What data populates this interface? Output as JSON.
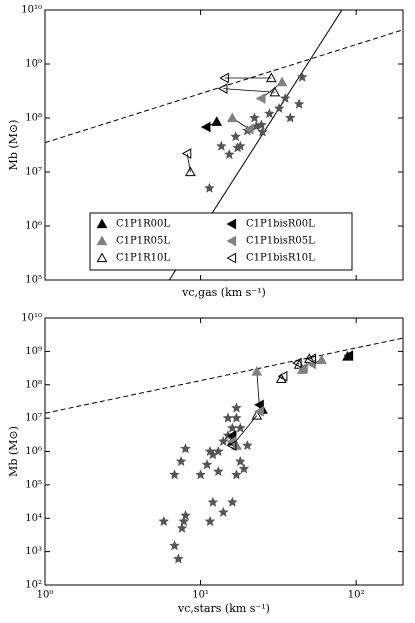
{
  "chart_data": [
    {
      "type": "scatter",
      "x_label": "vc,gas (km s⁻¹)",
      "y_label": "Mb (M⊙)",
      "xscale": "log",
      "yscale": "log",
      "xlim": [
        1,
        200
      ],
      "ylim": [
        100000,
        10000000000
      ],
      "xticks": [
        1,
        10,
        100
      ],
      "show_xtick_labels": false,
      "yticks": [
        {
          "value": 100000,
          "label": "10⁵"
        },
        {
          "value": 1000000,
          "label": "10⁶"
        },
        {
          "value": 10000000,
          "label": "10⁷"
        },
        {
          "value": 100000000,
          "label": "10⁸"
        },
        {
          "value": 1000000000,
          "label": "10⁹"
        },
        {
          "value": 10000000000,
          "label": "10¹⁰"
        }
      ],
      "legend": "lower center",
      "connect_pairs": [
        [
          0,
          3
        ],
        [
          1,
          4
        ],
        [
          2,
          5
        ]
      ],
      "series": [
        {
          "name": "C1P1R00L",
          "marker": "^",
          "color": "#000000",
          "edgecolor": "#000000",
          "x": [
            12.7
          ],
          "values": [
            85000000
          ]
        },
        {
          "name": "C1P1R05L",
          "marker": "^",
          "color": "#808080",
          "edgecolor": "#808080",
          "x": [
            33.4,
            16
          ],
          "values": [
            460000000,
            100000000
          ]
        },
        {
          "name": "C1P1R10L",
          "marker": "^",
          "color": "none",
          "edgecolor": "#000000",
          "x": [
            8.6,
            28.5,
            30
          ],
          "values": [
            10000000,
            550000000,
            300000000
          ]
        },
        {
          "name": "C1P1bisR00L",
          "marker": "<",
          "color": "#000000",
          "edgecolor": "#000000",
          "x": [
            10.9
          ],
          "values": [
            68000000
          ]
        },
        {
          "name": "C1P1bisR05L",
          "marker": "<",
          "color": "#808080",
          "edgecolor": "#808080",
          "x": [
            24.6,
            20.6
          ],
          "values": [
            230000000,
            62000000
          ]
        },
        {
          "name": "C1P1bisR10L",
          "marker": "<",
          "color": "none",
          "edgecolor": "#000000",
          "x": [
            8.2,
            14.3,
            14
          ],
          "values": [
            22000000,
            550000000,
            350000000
          ]
        },
        {
          "marker": "*",
          "color": "#555555",
          "edgecolor": "#555555",
          "x": [
            11.4,
            13.6,
            17.3,
            16.8,
            20,
            22.2,
            24.6,
            22.8,
            27.7,
            32,
            35,
            45,
            43,
            37.7,
            25,
            15.3,
            18
          ],
          "values": [
            5000000,
            30000000,
            28000000,
            45000000,
            58000000,
            100000000,
            74000000,
            70000000,
            120000000,
            150000000,
            230000000,
            570000000,
            180000000,
            100000000,
            55000000,
            21000000,
            30000000
          ]
        },
        {
          "marker": "line",
          "color": "#000000",
          "dash": true,
          "x": [
            1,
            200
          ],
          "values": [
            35000000,
            4300000000
          ]
        },
        {
          "marker": "line",
          "color": "#000000",
          "dash": false,
          "x": [
            6.3,
            81
          ],
          "values": [
            100000,
            10000000000
          ]
        }
      ]
    },
    {
      "type": "scatter",
      "x_label": "vc,stars (km s⁻¹)",
      "y_label": "Mb (M⊙)",
      "xscale": "log",
      "yscale": "log",
      "xlim": [
        1,
        200
      ],
      "ylim": [
        100,
        10000000000
      ],
      "xticks": [
        {
          "value": 1,
          "label": "10⁰"
        },
        {
          "value": 10,
          "label": "10¹"
        },
        {
          "value": 100,
          "label": "10²"
        }
      ],
      "show_xtick_labels": true,
      "yticks": [
        {
          "value": 100,
          "label": "10²"
        },
        {
          "value": 1000,
          "label": "10³"
        },
        {
          "value": 10000,
          "label": "10⁴"
        },
        {
          "value": 100000,
          "label": "10⁵"
        },
        {
          "value": 1000000,
          "label": "10⁶"
        },
        {
          "value": 10000000,
          "label": "10⁷"
        },
        {
          "value": 100000000,
          "label": "10⁸"
        },
        {
          "value": 1000000000,
          "label": "10⁹"
        },
        {
          "value": 10000000000,
          "label": "10¹⁰"
        }
      ],
      "connect_pairs": [
        [
          0,
          3
        ],
        [
          1,
          4
        ],
        [
          2,
          5
        ]
      ],
      "series": [
        {
          "name": "C1P1R00L",
          "marker": "^",
          "color": "#000000",
          "edgecolor": "#000000",
          "x": [
            16,
            25,
            88
          ],
          "values": [
            2000000,
            18000000,
            700000000
          ]
        },
        {
          "name": "C1P1R05L",
          "marker": "^",
          "color": "#808080",
          "edgecolor": "#808080",
          "x": [
            17,
            23,
            45,
            60
          ],
          "values": [
            1500000,
            250000000,
            280000000,
            550000000
          ]
        },
        {
          "name": "C1P1R10L",
          "marker": "^",
          "color": "none",
          "edgecolor": "#000000",
          "x": [
            23,
            33,
            43,
            50
          ],
          "values": [
            12000000,
            150000000,
            400000000,
            600000000
          ]
        },
        {
          "name": "C1P1bisR00L",
          "marker": "<",
          "color": "#000000",
          "edgecolor": "#000000",
          "x": [
            16,
            24,
            90
          ],
          "values": [
            3000000,
            25000000,
            750000000
          ]
        },
        {
          "name": "C1P1bisR05L",
          "marker": "<",
          "color": "#808080",
          "edgecolor": "#808080",
          "x": [
            16,
            24,
            46,
            52
          ],
          "values": [
            2000000,
            16000000,
            320000000,
            420000000
          ]
        },
        {
          "name": "C1P1bisR10L",
          "marker": "<",
          "color": "none",
          "edgecolor": "#000000",
          "x": [
            16,
            34,
            42,
            52
          ],
          "values": [
            1500000,
            180000000,
            450000000,
            600000000
          ]
        },
        {
          "marker": "*",
          "color": "#555555",
          "edgecolor": "#555555",
          "x": [
            5.8,
            6.8,
            7.2,
            7.6,
            7.8,
            8.0,
            6.8,
            8.0,
            7.5,
            10,
            11,
            11.5,
            12,
            13,
            12,
            11.5,
            14,
            16,
            14,
            16,
            17,
            17,
            18,
            15,
            19,
            17,
            13,
            15,
            20,
            18
          ],
          "values": [
            8000,
            1500,
            600,
            5000,
            8000,
            12000,
            200000,
            1200000,
            500000,
            200000,
            400000,
            1000000,
            800000,
            1000000,
            30000,
            8000,
            15000,
            30000,
            2000000,
            5000000,
            10000000,
            20000000,
            5000000,
            10000000,
            300000,
            200000,
            250000,
            3000000,
            1500000,
            500000
          ]
        },
        {
          "marker": "line",
          "color": "#000000",
          "dash": true,
          "x": [
            1,
            200
          ],
          "values": [
            14000000,
            2500000000
          ]
        }
      ]
    }
  ]
}
